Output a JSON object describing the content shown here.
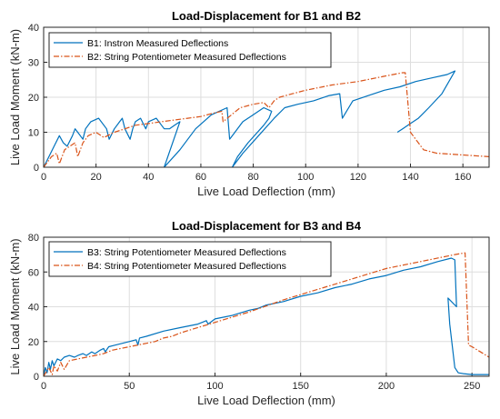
{
  "chart_data": [
    {
      "type": "line",
      "title": "Load-Displacement for B1 and B2",
      "xlabel": "Live Load Deflection (mm)",
      "ylabel": "Live Load Moment (kN-m)",
      "xlim": [
        0,
        170
      ],
      "ylim": [
        0,
        40
      ],
      "xticks": [
        0,
        20,
        40,
        60,
        80,
        100,
        120,
        140,
        160
      ],
      "yticks": [
        0,
        10,
        20,
        30,
        40
      ],
      "grid": true,
      "legend_position": "top-left",
      "series": [
        {
          "name": "B1: Instron Measured Deflections",
          "color": "#0072BD",
          "style": "solid",
          "x": [
            0,
            2,
            4,
            6,
            7.5,
            9,
            11,
            12,
            13,
            15,
            16,
            18,
            21,
            24,
            25,
            27,
            29,
            30,
            31,
            33,
            34,
            35,
            37,
            39,
            40,
            43,
            45,
            46,
            48,
            50,
            52,
            46,
            52,
            58,
            64,
            70,
            71,
            73,
            76,
            80,
            84,
            87,
            86,
            84,
            78,
            74,
            72,
            76,
            82,
            88,
            92,
            97,
            103,
            109,
            113,
            114,
            118,
            124,
            130,
            136,
            142,
            148,
            154,
            157,
            152,
            147,
            143,
            140,
            137,
            135
          ],
          "y": [
            0,
            3,
            6,
            9,
            7,
            6,
            9,
            11,
            10,
            8,
            11,
            13,
            14,
            11,
            8,
            11,
            13,
            14,
            11,
            8,
            11,
            13,
            14,
            11,
            13,
            14,
            12,
            11,
            11,
            12,
            13,
            0,
            5,
            11,
            15,
            17,
            8,
            10,
            13,
            15,
            17,
            16,
            14,
            12,
            7,
            3,
            0,
            4,
            9,
            14,
            17,
            18,
            19,
            20.5,
            21,
            14,
            19,
            20.5,
            22,
            23,
            24.5,
            25.5,
            26.5,
            27.5,
            21,
            17,
            14,
            12.5,
            11,
            10
          ]
        },
        {
          "name": "B2: String Potentiometer Measured Deflections",
          "color": "#D95319",
          "style": "dashdot",
          "x": [
            0,
            3,
            5,
            6,
            8,
            10,
            12,
            13,
            15,
            17,
            20,
            23,
            27,
            31,
            35,
            40,
            45,
            50,
            55,
            60,
            65,
            68,
            68.5,
            75,
            80,
            84,
            86,
            88,
            90,
            95,
            100,
            110,
            120,
            130,
            137,
            138,
            140,
            145,
            150,
            160,
            170
          ],
          "y": [
            0,
            3,
            4,
            1,
            5,
            6,
            7,
            3,
            7,
            9,
            10,
            8.5,
            10,
            11,
            12,
            12.5,
            13,
            13.5,
            14,
            14.5,
            15.5,
            16,
            13,
            17,
            18,
            18.5,
            17,
            19,
            20,
            21,
            22,
            23.5,
            24.5,
            26,
            27,
            27,
            10,
            5,
            4,
            3.5,
            3
          ]
        }
      ]
    },
    {
      "type": "line",
      "title": "Load-Displacement for B3 and B4",
      "xlabel": "Live Load Deflection (mm)",
      "ylabel": "Live Load Moment (kN-m)",
      "xlim": [
        0,
        260
      ],
      "ylim": [
        0,
        80
      ],
      "xticks": [
        0,
        50,
        100,
        150,
        200,
        250
      ],
      "yticks": [
        0,
        20,
        40,
        60,
        80
      ],
      "grid": true,
      "legend_position": "top-left",
      "series": [
        {
          "name": "B3: String Potentiometer Measured Deflections",
          "color": "#0072BD",
          "style": "solid",
          "x": [
            0,
            1,
            2,
            3,
            4,
            5,
            6,
            8,
            10,
            12,
            15,
            18,
            20,
            23,
            25,
            28,
            30,
            33,
            35,
            36,
            38,
            42,
            46,
            50,
            54,
            55,
            56,
            60,
            70,
            80,
            90,
            95,
            96,
            100,
            110,
            120,
            125,
            130,
            140,
            150,
            160,
            170,
            180,
            190,
            200,
            210,
            220,
            230,
            238,
            240,
            241,
            236,
            237,
            240,
            242,
            245,
            250,
            255,
            260
          ],
          "y": [
            0,
            5,
            2,
            8,
            4,
            9,
            6,
            10,
            9,
            11,
            12,
            11,
            12,
            13,
            12,
            14,
            13,
            15,
            16,
            14,
            17,
            18,
            19,
            20,
            21,
            18,
            22,
            23,
            26,
            28,
            30,
            32,
            30,
            33,
            35,
            38,
            39,
            41,
            43,
            46,
            48,
            51,
            53,
            56,
            58,
            61,
            63,
            66,
            68,
            67,
            40,
            45,
            30,
            5,
            2,
            1.5,
            1,
            1,
            1
          ]
        },
        {
          "name": "B4: String Potentiometer Measured Deflections",
          "color": "#D95319",
          "style": "dashdot",
          "x": [
            0,
            3,
            5,
            6,
            8,
            10,
            12,
            15,
            20,
            25,
            30,
            35,
            40,
            45,
            50,
            55,
            60,
            65,
            70,
            75,
            80,
            90,
            100,
            120,
            140,
            160,
            180,
            200,
            220,
            240,
            246,
            248,
            250,
            255,
            260
          ],
          "y": [
            0,
            5,
            1,
            6,
            3,
            8,
            4,
            9,
            10,
            11,
            12,
            13,
            15,
            16,
            17,
            18,
            19,
            20,
            22,
            23,
            25,
            28,
            31,
            37,
            44,
            50,
            56,
            62,
            66,
            70,
            71,
            18,
            17,
            14,
            11
          ]
        }
      ]
    }
  ]
}
